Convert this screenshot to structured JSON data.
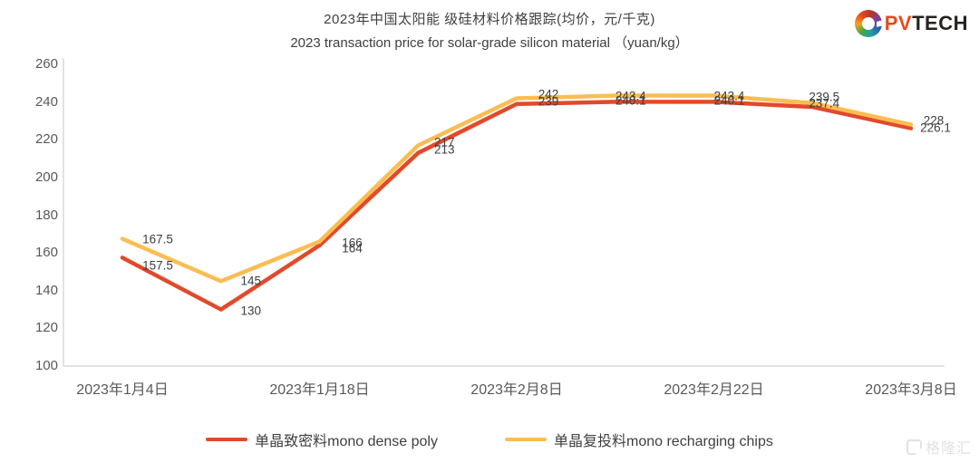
{
  "header": {
    "title_zh": "2023年中国太阳能 级硅材料价格跟踪(均价，元/千克)",
    "title_en": "2023 transaction price for solar-grade silicon material （yuan/kg）",
    "logo": {
      "pv": "PV",
      "tech": "TECH",
      "icon": "pvtech-ring-icon"
    }
  },
  "watermark": {
    "text": "格隆汇",
    "icon": "gelonghui-g-icon"
  },
  "colors": {
    "dense_poly_line": "#e2492a",
    "recharging_line": "#fbbd53",
    "axis": "#d9d9d9",
    "tick_text": "#595959",
    "label_text": "#3f3f3f"
  },
  "legend": [
    {
      "label": "单晶致密料mono dense poly",
      "color": "#e2492a"
    },
    {
      "label": "单晶复投料mono recharging chips",
      "color": "#fbbd53"
    }
  ],
  "chart_data": {
    "type": "line",
    "title": "2023年中国太阳能 级硅材料价格跟踪(均价，元/千克)",
    "subtitle": "2023 transaction price for solar-grade silicon material （yuan/kg）",
    "ylim": [
      100,
      260
    ],
    "y_ticks": [
      260,
      240,
      220,
      200,
      180,
      160,
      140,
      120,
      100
    ],
    "x_tick_labels": [
      "2023年1月4日",
      "2023年1月18日",
      "2023年2月8日",
      "2023年2月22日",
      "2023年3月8日"
    ],
    "grid": false,
    "legend_position": "bottom",
    "series": [
      {
        "name": "单晶致密料mono dense poly",
        "color": "#e2492a",
        "values": [
          157.5,
          130,
          164,
          213,
          239,
          240.1,
          240.1,
          237.4,
          226.1
        ]
      },
      {
        "name": "单晶复投料mono recharging chips",
        "color": "#fbbd53",
        "values": [
          167.5,
          145,
          166,
          217,
          242,
          243.4,
          243.4,
          239.5,
          228
        ]
      }
    ]
  }
}
